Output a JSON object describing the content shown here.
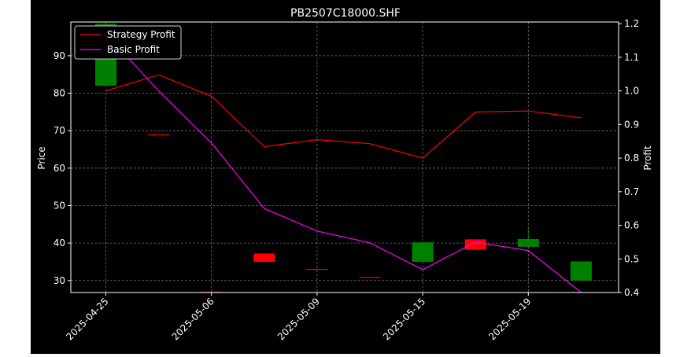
{
  "chart_data": {
    "type": "candlestick",
    "title": "PB2507C18000.SHF",
    "ylabel_left": "Price",
    "ylabel_right": "Profit",
    "xlabel": "",
    "grid": true,
    "legend_position": "top-left",
    "x_ticks": [
      "2025-04-25",
      "2025-05-06",
      "2025-05-09",
      "2025-05-15",
      "2025-05-19"
    ],
    "x_tick_index": [
      0,
      2,
      4,
      6,
      8
    ],
    "ylim_left": [
      26.8,
      99
    ],
    "yticks_left": [
      30,
      40,
      50,
      60,
      70,
      80,
      90
    ],
    "ylim_right": [
      0.4,
      1.205
    ],
    "yticks_right": [
      0.4,
      0.5,
      0.6,
      0.7,
      0.8,
      0.9,
      1.0,
      1.1,
      1.2
    ],
    "candles": [
      {
        "open": 82.0,
        "close": 98.5,
        "color": "#008000"
      },
      {
        "open": 69.0,
        "close": 69.0,
        "color": "#ff0000"
      },
      {
        "open": 27.0,
        "close": 27.0,
        "color": "#ff0000"
      },
      {
        "open": 37.2,
        "close": 35.0,
        "color": "#ff0000"
      },
      {
        "open": 33.1,
        "close": 33.1,
        "color": "#ff0000"
      },
      {
        "open": 31.0,
        "close": 31.0,
        "color": "#ff0000"
      },
      {
        "open": 35.0,
        "close": 40.2,
        "color": "#008000"
      },
      {
        "open": 41.0,
        "close": 38.2,
        "color": "#ff0000"
      },
      {
        "open": 39.0,
        "close": 41.1,
        "color": "#008000",
        "high": 44.0
      },
      {
        "open": 30.0,
        "close": 35.1,
        "color": "#008000"
      }
    ],
    "series": [
      {
        "name": "Strategy Profit",
        "color": "#ff0000",
        "axis": "right",
        "values": [
          1.0,
          1.048,
          0.984,
          0.834,
          0.855,
          0.843,
          0.8,
          0.937,
          0.94,
          0.92
        ]
      },
      {
        "name": "Basic Profit",
        "color": "#ff00ff",
        "axis": "right",
        "values": [
          1.17,
          1.0,
          0.845,
          0.65,
          0.583,
          0.548,
          0.468,
          0.55,
          0.525,
          0.4
        ]
      }
    ]
  }
}
